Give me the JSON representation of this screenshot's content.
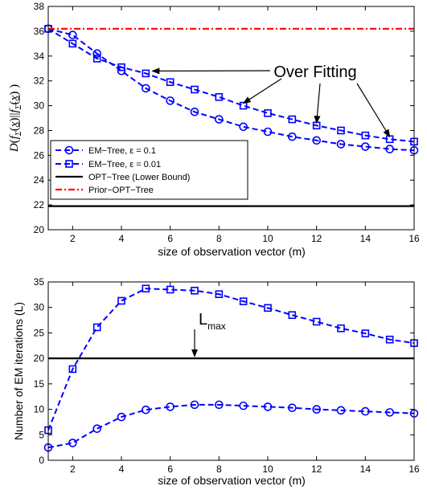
{
  "chart_data": [
    {
      "type": "line",
      "xlabel": "size of observation vector (m)",
      "ylabel": "D(f_Σ(x) || f_Σ̃(x))",
      "xlim": [
        1,
        16
      ],
      "ylim": [
        20,
        38
      ],
      "xticks": [
        2,
        4,
        6,
        8,
        10,
        12,
        14,
        16
      ],
      "yticks": [
        20,
        22,
        24,
        26,
        28,
        30,
        32,
        34,
        36,
        38
      ],
      "grid": false,
      "legend_position": "lower-left",
      "series": [
        {
          "name": "EM−Tree, ε = 0.1",
          "style": "dashed",
          "marker": "circle",
          "color": "#0000ff",
          "x": [
            1,
            2,
            3,
            4,
            5,
            6,
            7,
            8,
            9,
            10,
            11,
            12,
            13,
            14,
            15,
            16
          ],
          "values": [
            36.2,
            35.7,
            34.2,
            32.8,
            31.4,
            30.4,
            29.5,
            28.9,
            28.3,
            27.9,
            27.5,
            27.2,
            26.9,
            26.7,
            26.5,
            26.4
          ]
        },
        {
          "name": "EM−Tree, ε = 0.01",
          "style": "dashed",
          "marker": "square",
          "color": "#0000ff",
          "x": [
            1,
            2,
            3,
            4,
            5,
            6,
            7,
            8,
            9,
            10,
            11,
            12,
            13,
            14,
            15,
            16
          ],
          "values": [
            36.2,
            35.0,
            33.8,
            33.1,
            32.6,
            31.9,
            31.3,
            30.7,
            30.0,
            29.4,
            28.9,
            28.4,
            28.0,
            27.6,
            27.3,
            27.1
          ]
        },
        {
          "name": "OPT−Tree (Lower Bound)",
          "style": "solid",
          "marker": "none",
          "color": "#000000",
          "x": [
            1,
            16
          ],
          "values": [
            21.9,
            21.9
          ]
        },
        {
          "name": "Prior−OPT−Tree",
          "style": "dashdot",
          "marker": "none",
          "color": "#ff0000",
          "x": [
            1,
            16
          ],
          "values": [
            36.2,
            36.2
          ]
        }
      ],
      "annotations": [
        {
          "text": "Over Fitting",
          "x": 10.9,
          "y": 32.4,
          "arrows_to": [
            [
              5,
              32.6
            ],
            [
              9,
              30.0
            ],
            [
              12,
              28.4
            ],
            [
              15,
              27.3
            ]
          ]
        }
      ]
    },
    {
      "type": "line",
      "xlabel": "size of observation vector (m)",
      "ylabel": "Number of EM iterations (L)",
      "xlim": [
        1,
        16
      ],
      "ylim": [
        0,
        35
      ],
      "xticks": [
        2,
        4,
        6,
        8,
        10,
        12,
        14,
        16
      ],
      "yticks": [
        0,
        5,
        10,
        15,
        20,
        25,
        30,
        35
      ],
      "grid": false,
      "series": [
        {
          "style": "dashed",
          "marker": "circle",
          "color": "#0000ff",
          "x": [
            1,
            2,
            3,
            4,
            5,
            6,
            7,
            8,
            9,
            10,
            11,
            12,
            13,
            14,
            15,
            16
          ],
          "values": [
            2.5,
            3.4,
            6.2,
            8.5,
            9.9,
            10.5,
            10.9,
            10.9,
            10.7,
            10.5,
            10.3,
            10.0,
            9.8,
            9.6,
            9.4,
            9.2
          ]
        },
        {
          "style": "dashed",
          "marker": "square",
          "color": "#0000ff",
          "x": [
            1,
            2,
            3,
            4,
            5,
            6,
            7,
            8,
            9,
            10,
            11,
            12,
            13,
            14,
            15,
            16
          ],
          "values": [
            5.9,
            17.9,
            26.1,
            31.3,
            33.7,
            33.5,
            33.3,
            32.6,
            31.2,
            29.9,
            28.5,
            27.2,
            25.9,
            24.9,
            23.7,
            23.0
          ]
        },
        {
          "style": "solid",
          "marker": "none",
          "color": "#000000",
          "x": [
            1,
            16
          ],
          "values": [
            20,
            20
          ]
        }
      ],
      "annotations": [
        {
          "text": "L",
          "subscript": "max",
          "x": 7.0,
          "y": 25.4,
          "arrow_to": [
            7.0,
            20.2
          ]
        }
      ]
    }
  ]
}
